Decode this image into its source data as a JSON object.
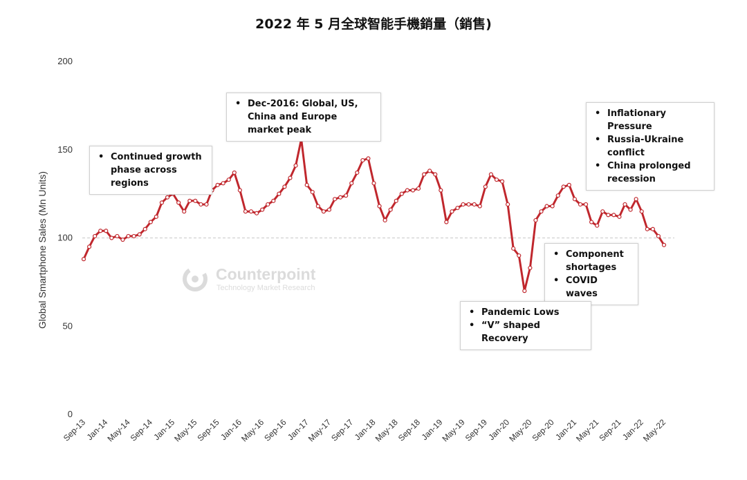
{
  "chart_data": {
    "type": "line",
    "title": "2022 年 5 月全球智能手機銷量（銷售)",
    "ylabel": "Global Smartphone Sales (Mn Units)",
    "xlabel": "",
    "ylim": [
      0,
      200
    ],
    "yticks": [
      0,
      50,
      100,
      150,
      200
    ],
    "reference_line": 100,
    "grid": false,
    "legend": "none",
    "x_tick_labels": [
      "Sep-13",
      "Jan-14",
      "May-14",
      "Sep-14",
      "Jan-15",
      "May-15",
      "Sep-15",
      "Jan-16",
      "May-16",
      "Sep-16",
      "Jan-17",
      "May-17",
      "Sep-17",
      "Jan-18",
      "May-18",
      "Sep-18",
      "Jan-19",
      "May-19",
      "Sep-19",
      "Jan-20",
      "May-20",
      "Sep-20",
      "Jan-21",
      "May-21",
      "Sep-21",
      "Jan-22",
      "May-22"
    ],
    "series": [
      {
        "color": "#c0272d",
        "x": [
          "Sep-13",
          "Oct-13",
          "Nov-13",
          "Dec-13",
          "Jan-14",
          "Feb-14",
          "Mar-14",
          "Apr-14",
          "May-14",
          "Jun-14",
          "Jul-14",
          "Aug-14",
          "Sep-14",
          "Oct-14",
          "Nov-14",
          "Dec-14",
          "Jan-15",
          "Feb-15",
          "Mar-15",
          "Apr-15",
          "May-15",
          "Jun-15",
          "Jul-15",
          "Aug-15",
          "Sep-15",
          "Oct-15",
          "Nov-15",
          "Dec-15",
          "Jan-16",
          "Feb-16",
          "Mar-16",
          "Apr-16",
          "May-16",
          "Jun-16",
          "Jul-16",
          "Aug-16",
          "Sep-16",
          "Oct-16",
          "Nov-16",
          "Dec-16",
          "Jan-17",
          "Feb-17",
          "Mar-17",
          "Apr-17",
          "May-17",
          "Jun-17",
          "Jul-17",
          "Aug-17",
          "Sep-17",
          "Oct-17",
          "Nov-17",
          "Dec-17",
          "Jan-18",
          "Feb-18",
          "Mar-18",
          "Apr-18",
          "May-18",
          "Jun-18",
          "Jul-18",
          "Aug-18",
          "Sep-18",
          "Oct-18",
          "Nov-18",
          "Dec-18",
          "Jan-19",
          "Feb-19",
          "Mar-19",
          "Apr-19",
          "May-19",
          "Jun-19",
          "Jul-19",
          "Aug-19",
          "Sep-19",
          "Oct-19",
          "Nov-19",
          "Dec-19",
          "Jan-20",
          "Feb-20",
          "Mar-20",
          "Apr-20",
          "May-20",
          "Jun-20",
          "Jul-20",
          "Aug-20",
          "Sep-20",
          "Oct-20",
          "Nov-20",
          "Dec-20",
          "Jan-21",
          "Feb-21",
          "Mar-21",
          "Apr-21",
          "May-21",
          "Jun-21",
          "Jul-21",
          "Aug-21",
          "Sep-21",
          "Oct-21",
          "Nov-21",
          "Dec-21",
          "Jan-22",
          "Feb-22",
          "Mar-22",
          "Apr-22",
          "May-22"
        ],
        "values": [
          88,
          95,
          101,
          104,
          104,
          100,
          101,
          99,
          101,
          101,
          102,
          105,
          109,
          112,
          120,
          123,
          125,
          120,
          115,
          121,
          121,
          119,
          119,
          127,
          130,
          131,
          133,
          137,
          127,
          115,
          115,
          114,
          116,
          119,
          121,
          125,
          129,
          134,
          141,
          156,
          130,
          126,
          118,
          115,
          116,
          122,
          123,
          124,
          131,
          137,
          144,
          145,
          131,
          118,
          110,
          116,
          121,
          125,
          127,
          127,
          128,
          136,
          138,
          136,
          127,
          109,
          115,
          117,
          119,
          119,
          119,
          118,
          129,
          136,
          133,
          132,
          119,
          94,
          90,
          70,
          83,
          110,
          115,
          118,
          118,
          124,
          129,
          130,
          122,
          119,
          119,
          109,
          107,
          115,
          113,
          113,
          112,
          119,
          116,
          122,
          115,
          105,
          105,
          101,
          96
        ]
      }
    ]
  },
  "annotations": [
    {
      "items": [
        "Continued growth phase across regions"
      ]
    },
    {
      "items": [
        "Dec-2016: Global, US, China and Europe market peak"
      ]
    },
    {
      "items": [
        "Inflationary Pressure",
        "Russia-Ukraine conflict",
        "China prolonged recession"
      ]
    },
    {
      "items": [
        "Component shortages",
        "COVID waves"
      ]
    },
    {
      "items": [
        "Pandemic Lows",
        "“V” shaped Recovery"
      ]
    }
  ],
  "watermark": {
    "name": "Counterpoint",
    "subtitle": "Technology Market Research"
  }
}
